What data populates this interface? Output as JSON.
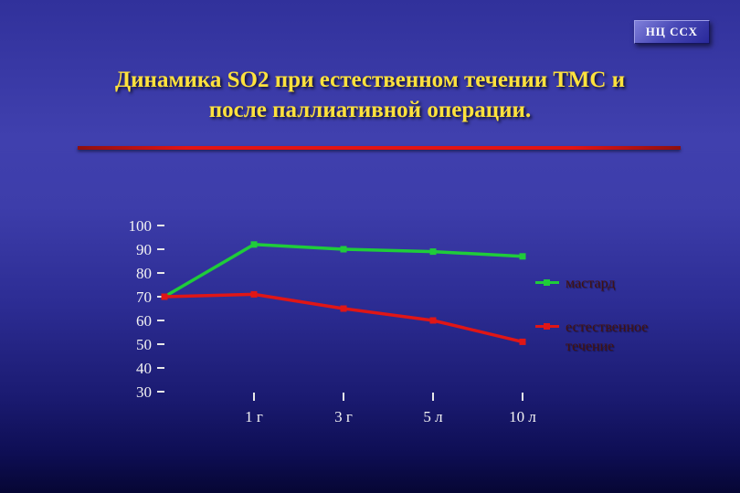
{
  "badge": {
    "label": "НЦ ССХ"
  },
  "title": {
    "line1": "Динамика SO2 при естественном течении ТМС и",
    "line2": "после паллиативной операции."
  },
  "colors": {
    "background_top": "#4040ae",
    "background_bottom": "#060634",
    "title_text": "#ffe23d",
    "divider": "#e41414",
    "axis_text": "#f3f3f3",
    "legend_text": "#44120f",
    "series_green": "#1fcc3a",
    "series_red": "#e01616"
  },
  "chart_data": {
    "type": "line",
    "categories": [
      "",
      "1 г",
      "3 г",
      "5 л",
      "10 л"
    ],
    "y_ticks": [
      100,
      90,
      80,
      70,
      60,
      50,
      40,
      30
    ],
    "ylim": [
      30,
      100
    ],
    "grid": false,
    "legend_position": "right",
    "series": [
      {
        "name": "мастард",
        "color": "#1fcc3a",
        "values": [
          70,
          92,
          90,
          89,
          87
        ]
      },
      {
        "name": "естественное течение",
        "color": "#e01616",
        "values": [
          70,
          71,
          65,
          60,
          51
        ]
      }
    ],
    "legend": [
      {
        "label": "мастард",
        "color": "#1fcc3a"
      },
      {
        "label": "естественное течение",
        "color": "#e01616"
      }
    ]
  }
}
